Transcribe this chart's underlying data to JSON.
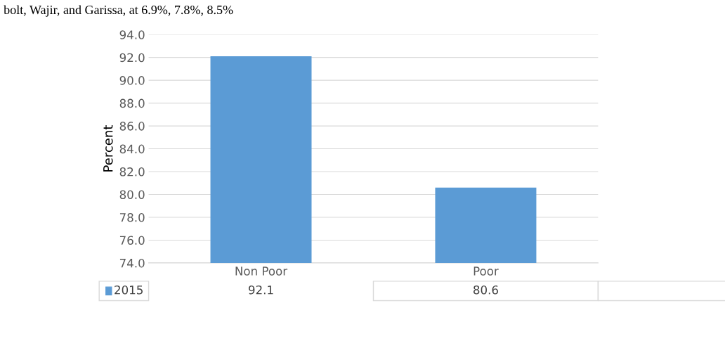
{
  "chart_data": {
    "type": "bar",
    "ylabel": "Percent",
    "annotations": [
      "bolt, Wajir, and Garissa, at 6.9%, 7.8%, 8.5%"
    ],
    "categories": [
      "Non Poor",
      "Poor"
    ],
    "series": [
      {
        "name": "2015",
        "color": "#5b9bd5",
        "values": [
          92.1,
          80.6
        ]
      }
    ],
    "ylim": [
      74,
      94
    ],
    "yticks": [
      {
        "value": 74,
        "label": "74.0"
      },
      {
        "value": 76,
        "label": "76.0"
      },
      {
        "value": 78,
        "label": "78.0"
      },
      {
        "value": 80,
        "label": "80.0"
      },
      {
        "value": 82,
        "label": "82.0"
      },
      {
        "value": 84,
        "label": "84.0"
      },
      {
        "value": 86,
        "label": "86.0"
      },
      {
        "value": 88,
        "label": "88.0"
      },
      {
        "value": 90,
        "label": "90.0"
      },
      {
        "value": 92,
        "label": "92.0"
      },
      {
        "value": 94,
        "label": "94.0"
      }
    ],
    "grid": "y",
    "legend": "bottom",
    "data_labels": true
  }
}
